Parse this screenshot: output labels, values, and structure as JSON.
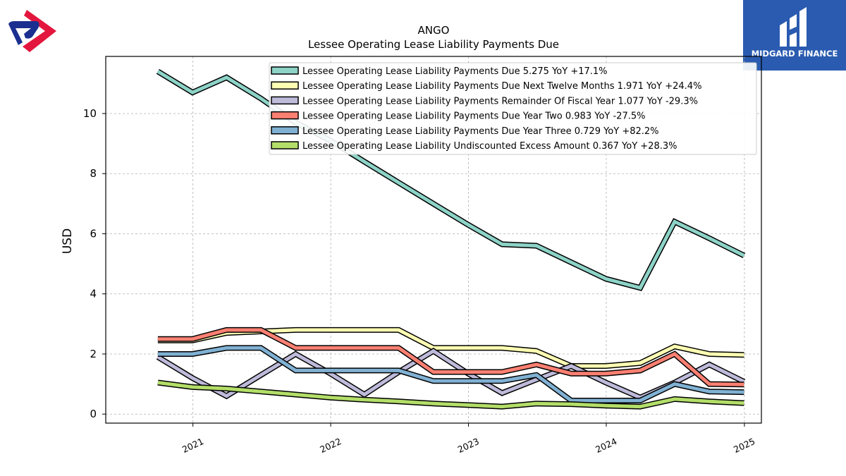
{
  "branding": {
    "right_logo_text": "MIDGARD FINANCE",
    "left_logo_icon": "ango-logo-icon",
    "right_logo_icon": "midgard-logo-icon",
    "colors": {
      "right_logo_bg": "#2a5bb0",
      "left_logo_red": "#e3173e",
      "left_logo_blue": "#1a2f8f"
    }
  },
  "chart_data": {
    "type": "line",
    "title": "ANGO",
    "subtitle": "Lessee Operating Lease Liability Payments Due",
    "xlabel": "",
    "ylabel": "USD",
    "xlim": [
      "2020-05-15",
      "2025-02-15"
    ],
    "ylim": [
      -0.3,
      11.9
    ],
    "yticks": [
      0,
      2,
      4,
      6,
      8,
      10
    ],
    "xticks": [
      "2021",
      "2022",
      "2023",
      "2024",
      "2025"
    ],
    "xtick_dates": [
      "2021-01-01",
      "2022-01-01",
      "2023-01-01",
      "2024-01-01",
      "2025-01-01"
    ],
    "grid": true,
    "legend_position": "top-right",
    "x": [
      "2020-09-30",
      "2020-12-31",
      "2021-03-31",
      "2021-06-30",
      "2021-09-30",
      "2021-12-31",
      "2022-03-31",
      "2022-06-30",
      "2022-09-30",
      "2022-12-31",
      "2023-03-31",
      "2023-06-30",
      "2023-09-30",
      "2023-12-31",
      "2024-03-31",
      "2024-06-30",
      "2024-09-30",
      "2024-12-31"
    ],
    "series": [
      {
        "name": "Lessee Operating Lease Liability Payments Due",
        "legend": "Lessee Operating Lease Liability Payments Due  5.275 YoY +17.1%",
        "color": "#8dd3c7",
        "values": [
          11.4,
          10.7,
          11.2,
          10.5,
          9.7,
          9.1,
          8.4,
          7.7,
          7.0,
          6.3,
          5.65,
          5.6,
          5.05,
          4.5,
          4.2,
          6.4,
          5.85,
          5.275
        ]
      },
      {
        "name": "Lessee Operating Lease Liability Payments Due Next Twelve Months",
        "legend": "Lessee Operating Lease Liability Payments Due Next Twelve Months  1.971 YoY +24.4%",
        "color": "#ffffb3",
        "values": [
          2.45,
          2.45,
          2.7,
          2.75,
          2.8,
          2.8,
          2.8,
          2.8,
          2.2,
          2.2,
          2.2,
          2.1,
          1.6,
          1.6,
          1.7,
          2.25,
          2.0,
          1.971
        ]
      },
      {
        "name": "Lessee Operating Lease Liability Payments Remainder Of Fiscal Year",
        "legend": "Lessee Operating Lease Liability Payments Remainder Of Fiscal Year  1.077 YoY -29.3%",
        "color": "#bebada",
        "values": [
          1.9,
          1.2,
          0.6,
          1.3,
          2.0,
          1.35,
          0.65,
          1.4,
          2.1,
          1.35,
          0.7,
          1.15,
          1.6,
          1.05,
          0.55,
          1.05,
          1.65,
          1.077
        ]
      },
      {
        "name": "Lessee Operating Lease Liability Payments Due Year Two",
        "legend": "Lessee Operating Lease Liability Payments Due Year Two  0.983 YoY -27.5%",
        "color": "#fb8072",
        "values": [
          2.5,
          2.5,
          2.8,
          2.8,
          2.2,
          2.2,
          2.2,
          2.2,
          1.4,
          1.4,
          1.4,
          1.65,
          1.35,
          1.35,
          1.45,
          2.0,
          1.0,
          0.983
        ]
      },
      {
        "name": "Lessee Operating Lease Liability Payments Due Year Three",
        "legend": "Lessee Operating Lease Liability Payments Due Year Three  0.729 YoY +82.2%",
        "color": "#80b1d3",
        "values": [
          2.0,
          2.0,
          2.2,
          2.2,
          1.45,
          1.45,
          1.45,
          1.45,
          1.1,
          1.1,
          1.1,
          1.3,
          0.45,
          0.45,
          0.45,
          1.0,
          0.75,
          0.729
        ]
      },
      {
        "name": "Lessee Operating Lease Liability Undiscounted Excess Amount",
        "legend": "Lessee Operating Lease Liability Undiscounted Excess Amount  0.367 YoY +28.3%",
        "color": "#b3de69",
        "values": [
          1.05,
          0.9,
          0.85,
          0.75,
          0.65,
          0.55,
          0.48,
          0.42,
          0.35,
          0.3,
          0.25,
          0.35,
          0.33,
          0.28,
          0.25,
          0.5,
          0.42,
          0.367
        ]
      }
    ]
  }
}
